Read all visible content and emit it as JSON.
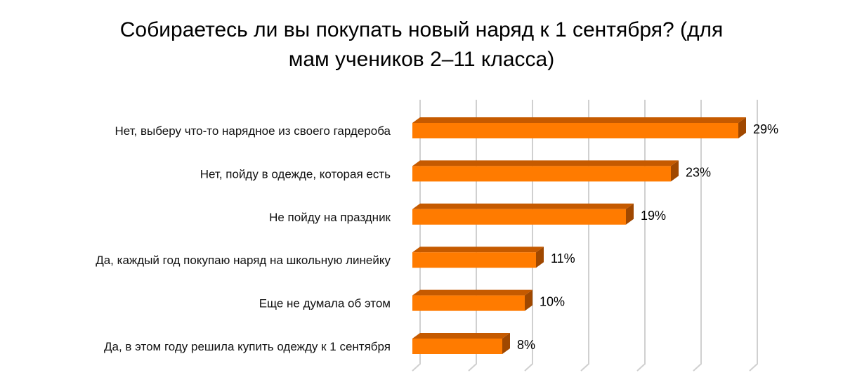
{
  "chart_data": {
    "type": "bar",
    "orientation": "horizontal",
    "style": "3d",
    "title_lines": [
      "Собираетесь ли вы покупать новый наряд к 1 сентября? (для",
      "мам учеников 2–11 класса)"
    ],
    "categories": [
      "Нет, выберу что-то нарядное из своего гардероба",
      "Нет, пойду в одежде, которая есть",
      "Не пойду на праздник",
      "Да, каждый год покупаю наряд на школьную линейку",
      "Еще не думала об этом",
      "Да, в этом году решила купить одежду к 1 сентября"
    ],
    "values": [
      29,
      23,
      19,
      11,
      10,
      8
    ],
    "data_labels": [
      "29%",
      "23%",
      "19%",
      "11%",
      "10%",
      "8%"
    ],
    "xlim": [
      0,
      30
    ],
    "x_grid_step": 5,
    "grid": true,
    "legend": "none",
    "colors": {
      "front": "#ff7b00",
      "top": "#c55a00",
      "side": "#a04800",
      "grid": "#d0d0d0"
    }
  }
}
